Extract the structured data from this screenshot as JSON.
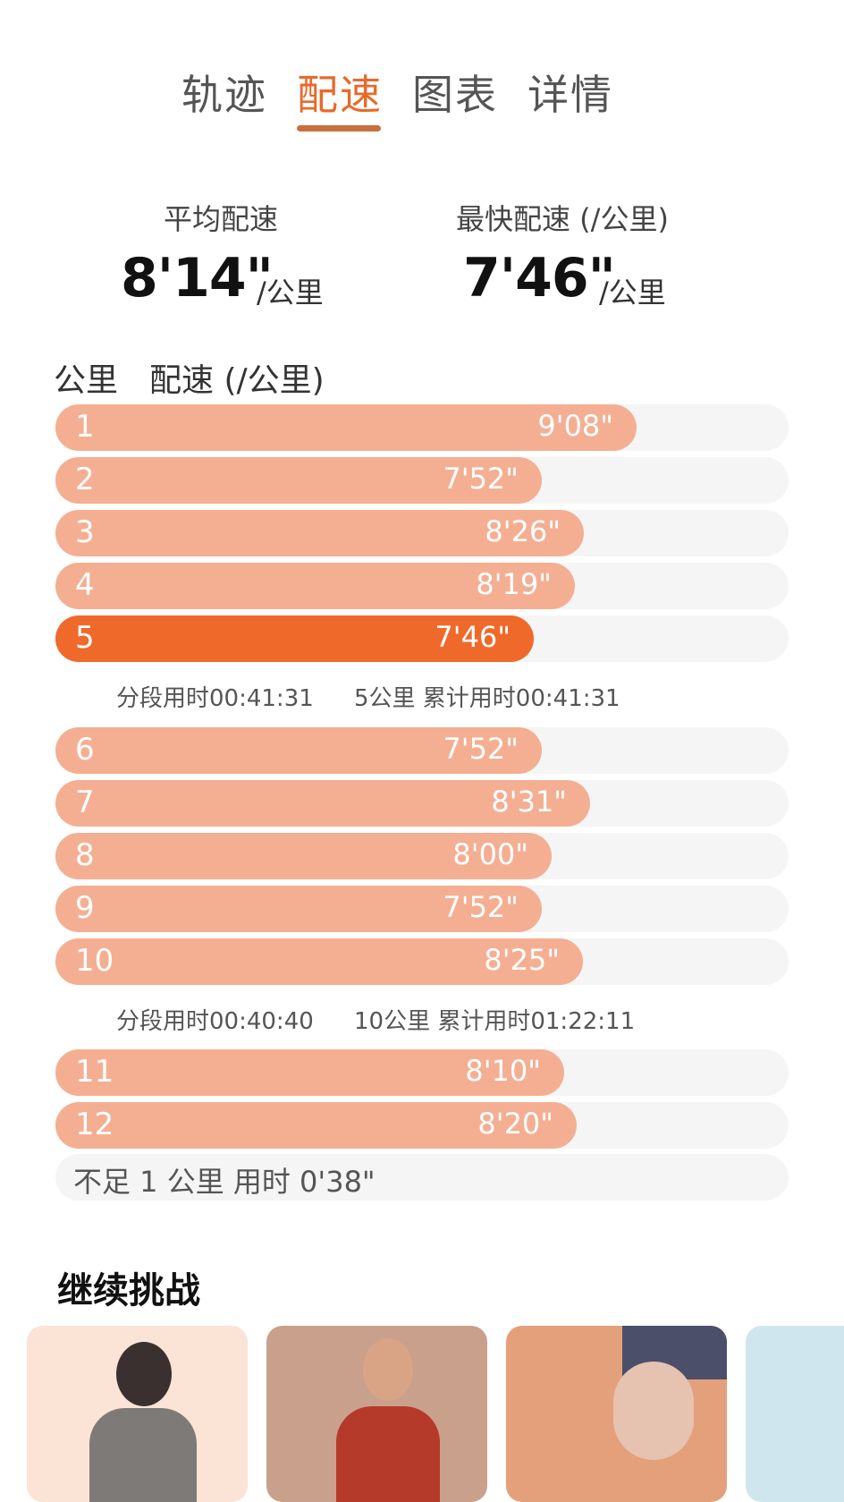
{
  "tabs": [
    {
      "label": "轨迹"
    },
    {
      "label": "配速"
    },
    {
      "label": "图表"
    },
    {
      "label": "详情"
    }
  ],
  "active_tab": "配速",
  "summary": {
    "avg_label": "平均配速",
    "avg_value": "8'14\"",
    "avg_unit": "/公里",
    "fastest_label": "最快配速 (/公里)",
    "fastest_value": "7'46\"",
    "fastest_unit": "/公里"
  },
  "table_header": {
    "km_label": "公里",
    "pace_label": "配速 (/公里)"
  },
  "splits": [
    {
      "km": "1",
      "pace": "9'08\"",
      "pace_seconds": 548
    },
    {
      "km": "2",
      "pace": "7'52\"",
      "pace_seconds": 472
    },
    {
      "km": "3",
      "pace": "8'26\"",
      "pace_seconds": 506
    },
    {
      "km": "4",
      "pace": "8'19\"",
      "pace_seconds": 499
    },
    {
      "km": "5",
      "pace": "7'46\"",
      "pace_seconds": 466,
      "fastest": true
    },
    {
      "km": "6",
      "pace": "7'52\"",
      "pace_seconds": 472
    },
    {
      "km": "7",
      "pace": "8'31\"",
      "pace_seconds": 511
    },
    {
      "km": "8",
      "pace": "8'00\"",
      "pace_seconds": 480
    },
    {
      "km": "9",
      "pace": "7'52\"",
      "pace_seconds": 472
    },
    {
      "km": "10",
      "pace": "8'25\"",
      "pace_seconds": 505
    },
    {
      "km": "11",
      "pace": "8'10\"",
      "pace_seconds": 490
    },
    {
      "km": "12",
      "pace": "8'20\"",
      "pace_seconds": 500
    }
  ],
  "segment_summaries": [
    {
      "segment_time": "分段用时00:41:31",
      "cumulative": "5公里 累计用时00:41:31"
    },
    {
      "segment_time": "分段用时00:40:40",
      "cumulative": "10公里 累计用时01:22:11"
    }
  ],
  "remainder": "不足 1 公里 用时 0'38\"",
  "continue_section": {
    "title": "继续挑战"
  },
  "colors": {
    "accent": "#E8692A",
    "bar": "#F4AF93",
    "bar_fastest": "#EF6A2A",
    "track": "#F5F5F5"
  }
}
